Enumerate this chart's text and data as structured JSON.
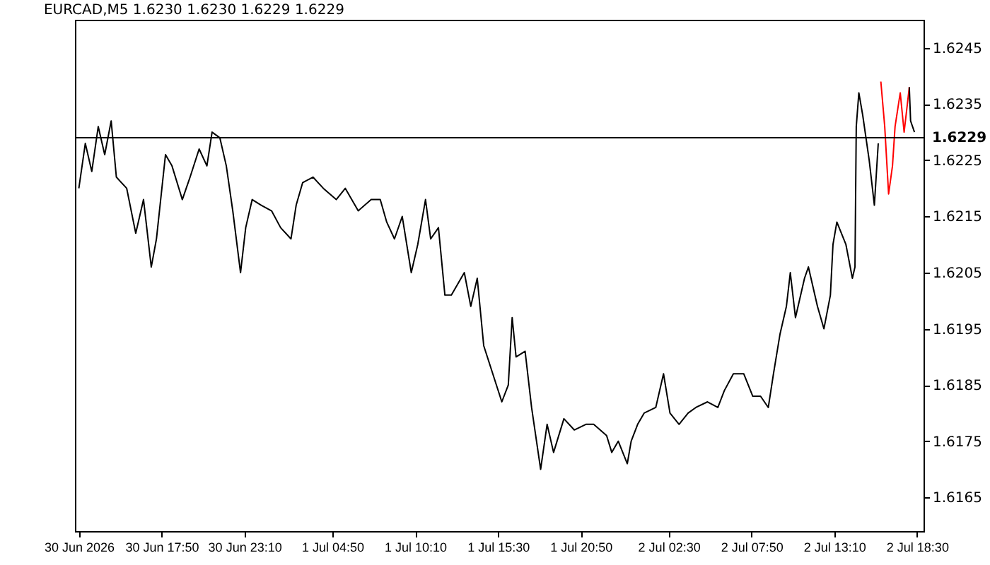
{
  "chart_data": {
    "type": "line",
    "title": "EURCAD,M5  1.6230 1.6230 1.6229 1.6229",
    "xlim": [
      "2026-06-30T12:15",
      "2026-07-02T18:55"
    ],
    "xticks": [
      {
        "value": "2026-06-30T12:30",
        "label": "30 Jun 2026"
      },
      {
        "value": "2026-06-30T17:50",
        "label": "30 Jun 17:50"
      },
      {
        "value": "2026-06-30T23:10",
        "label": "30 Jun 23:10"
      },
      {
        "value": "2026-07-01T04:50",
        "label": "1 Jul 04:50"
      },
      {
        "value": "2026-07-01T10:10",
        "label": "1 Jul 10:10"
      },
      {
        "value": "2026-07-01T15:30",
        "label": "1 Jul 15:30"
      },
      {
        "value": "2026-07-01T20:50",
        "label": "1 Jul 20:50"
      },
      {
        "value": "2026-07-02T02:30",
        "label": "2 Jul 02:30"
      },
      {
        "value": "2026-07-02T07:50",
        "label": "2 Jul 07:50"
      },
      {
        "value": "2026-07-02T13:10",
        "label": "2 Jul 13:10"
      },
      {
        "value": "2026-07-02T18:30",
        "label": "2 Jul 18:30"
      }
    ],
    "ylim": [
      1.6159,
      1.625
    ],
    "yticks": [
      1.6165,
      1.6175,
      1.6185,
      1.6195,
      1.6205,
      1.6215,
      1.6225,
      1.6235,
      1.6245
    ],
    "grid": false,
    "ref_lines": [
      {
        "axis": "y",
        "value": 1.6229,
        "label": "1.6229",
        "color": "#000000"
      }
    ],
    "series": [
      {
        "color": "#000000",
        "x": [
          "2026-06-30T12:30",
          "2026-06-30T12:55",
          "2026-06-30T13:20",
          "2026-06-30T13:45",
          "2026-06-30T14:10",
          "2026-06-30T14:35",
          "2026-06-30T14:55",
          "2026-06-30T15:35",
          "2026-06-30T16:10",
          "2026-06-30T16:40",
          "2026-06-30T17:10",
          "2026-06-30T17:30",
          "2026-06-30T18:05",
          "2026-06-30T18:30",
          "2026-06-30T19:10",
          "2026-06-30T19:40",
          "2026-06-30T20:15",
          "2026-06-30T20:45",
          "2026-06-30T21:05",
          "2026-06-30T21:35",
          "2026-06-30T22:00",
          "2026-06-30T22:25",
          "2026-06-30T22:55",
          "2026-06-30T23:15",
          "2026-06-30T23:40",
          "2026-07-01T00:15",
          "2026-07-01T00:55",
          "2026-07-01T01:30",
          "2026-07-01T02:10",
          "2026-07-01T02:30",
          "2026-07-01T02:55",
          "2026-07-01T03:35",
          "2026-07-01T04:15",
          "2026-07-01T05:05",
          "2026-07-01T05:40",
          "2026-07-01T06:30",
          "2026-07-01T07:20",
          "2026-07-01T07:55",
          "2026-07-01T08:20",
          "2026-07-01T08:50",
          "2026-07-01T09:20",
          "2026-07-01T09:55",
          "2026-07-01T10:20",
          "2026-07-01T10:50",
          "2026-07-01T11:10",
          "2026-07-01T11:40",
          "2026-07-01T12:05",
          "2026-07-01T12:30",
          "2026-07-01T13:20",
          "2026-07-01T13:45",
          "2026-07-01T14:10",
          "2026-07-01T14:35",
          "2026-07-01T15:10",
          "2026-07-01T15:45",
          "2026-07-01T16:10",
          "2026-07-01T16:25",
          "2026-07-01T16:40",
          "2026-07-01T17:15",
          "2026-07-01T17:40",
          "2026-07-01T18:15",
          "2026-07-01T18:40",
          "2026-07-01T19:05",
          "2026-07-01T19:45",
          "2026-07-01T20:25",
          "2026-07-01T21:10",
          "2026-07-01T21:40",
          "2026-07-01T22:30",
          "2026-07-01T22:50",
          "2026-07-01T23:15",
          "2026-07-01T23:50",
          "2026-07-02T00:05",
          "2026-07-02T00:30",
          "2026-07-02T00:55",
          "2026-07-02T01:40",
          "2026-07-02T02:10",
          "2026-07-02T02:35",
          "2026-07-02T03:10",
          "2026-07-02T03:45",
          "2026-07-02T04:15",
          "2026-07-02T05:00",
          "2026-07-02T05:40",
          "2026-07-02T06:05",
          "2026-07-02T06:40",
          "2026-07-02T07:20",
          "2026-07-02T07:55",
          "2026-07-02T08:25",
          "2026-07-02T08:55",
          "2026-07-02T09:15",
          "2026-07-02T09:40",
          "2026-07-02T10:05",
          "2026-07-02T10:20",
          "2026-07-02T10:40",
          "2026-07-02T11:15",
          "2026-07-02T11:30",
          "2026-07-02T12:05",
          "2026-07-02T12:30",
          "2026-07-02T12:55",
          "2026-07-02T13:05",
          "2026-07-02T13:20",
          "2026-07-02T13:55",
          "2026-07-02T14:20",
          "2026-07-02T14:30",
          "2026-07-02T14:35",
          "2026-07-02T14:45",
          "2026-07-02T15:00",
          "2026-07-02T15:25",
          "2026-07-02T15:45",
          "2026-07-02T16:00"
        ],
        "values": [
          1.622,
          1.6228,
          1.6223,
          1.6231,
          1.6226,
          1.6232,
          1.6222,
          1.622,
          1.6212,
          1.6218,
          1.6206,
          1.6211,
          1.6226,
          1.6224,
          1.6218,
          1.6222,
          1.6227,
          1.6224,
          1.623,
          1.6229,
          1.6224,
          1.6216,
          1.6205,
          1.6213,
          1.6218,
          1.6217,
          1.6216,
          1.6213,
          1.6211,
          1.6217,
          1.6221,
          1.6222,
          1.622,
          1.6218,
          1.622,
          1.6216,
          1.6218,
          1.6218,
          1.6214,
          1.6211,
          1.6215,
          1.6205,
          1.621,
          1.6218,
          1.6211,
          1.6213,
          1.6201,
          1.6201,
          1.6205,
          1.6199,
          1.6204,
          1.6192,
          1.6187,
          1.6182,
          1.6185,
          1.6197,
          1.619,
          1.6191,
          1.6181,
          1.617,
          1.6178,
          1.6173,
          1.6179,
          1.6177,
          1.6178,
          1.6178,
          1.6176,
          1.6173,
          1.6175,
          1.6171,
          1.6175,
          1.6178,
          1.618,
          1.6181,
          1.6187,
          1.618,
          1.6178,
          1.618,
          1.6181,
          1.6182,
          1.6181,
          1.6184,
          1.6187,
          1.6187,
          1.6183,
          1.6183,
          1.6181,
          1.6187,
          1.6194,
          1.6199,
          1.6205,
          1.6197,
          1.6204,
          1.6206,
          1.6199,
          1.6195,
          1.6201,
          1.621,
          1.6214,
          1.621,
          1.6204,
          1.6206,
          1.6231,
          1.6237,
          1.6233,
          1.6225,
          1.6217,
          1.6228
        ]
      },
      {
        "color": "#ff0000",
        "x": [
          "2026-07-02T16:10",
          "2026-07-02T16:25",
          "2026-07-02T16:40",
          "2026-07-02T16:55",
          "2026-07-02T17:05",
          "2026-07-02T17:25",
          "2026-07-02T17:40",
          "2026-07-02T17:50",
          "2026-07-02T18:00"
        ],
        "values": [
          1.6239,
          1.6231,
          1.6219,
          1.6224,
          1.6231,
          1.6237,
          1.623,
          1.6234,
          1.6238
        ]
      },
      {
        "color": "#000000",
        "x": [
          "2026-07-02T18:00",
          "2026-07-02T18:05",
          "2026-07-02T18:20"
        ],
        "values": [
          1.6238,
          1.6232,
          1.623
        ]
      }
    ]
  }
}
